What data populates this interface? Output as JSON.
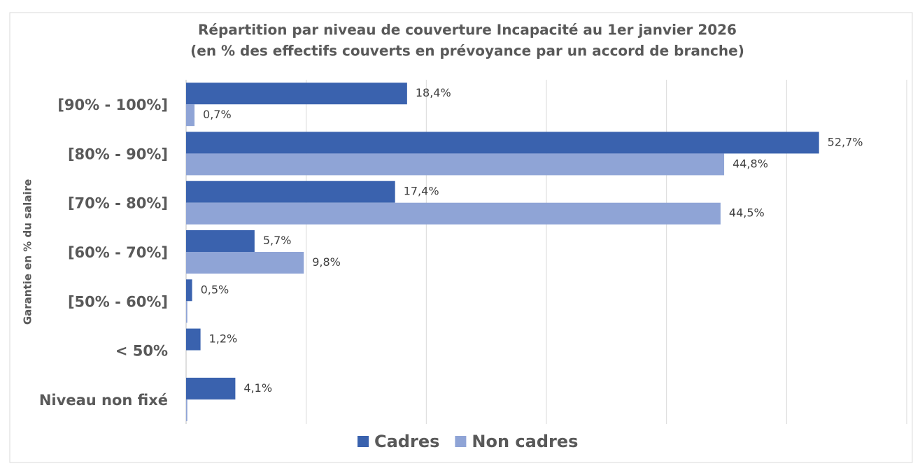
{
  "chart_data": {
    "type": "barh",
    "title": [
      "Répartition par niveau de couverture Incapacité au 1er janvier 2026",
      "(en % des effectifs couverts en prévoyance par un accord de branche)"
    ],
    "y_label": "Garantie en % du salaire",
    "categories": [
      "[90% - 100%]",
      "[80% - 90%]",
      "[70% - 80%]",
      "[60% - 70%]",
      "[50% - 60%]",
      "< 50%",
      "Niveau non fixé"
    ],
    "series": [
      {
        "name": "Cadres",
        "color": "#3a62ae",
        "values": [
          18.4,
          52.7,
          17.4,
          5.7,
          0.5,
          1.2,
          4.1
        ],
        "value_labels": [
          "18,4%",
          "52,7%",
          "17,4%",
          "5,7%",
          "0,5%",
          "1,2%",
          "4,1%"
        ]
      },
      {
        "name": "Non cadres",
        "color": "#8fa4d6",
        "values": [
          0.7,
          44.8,
          44.5,
          9.8,
          0.1,
          0,
          0.1
        ],
        "value_labels": [
          "0,7%",
          "44,8%",
          "44,5%",
          "9,8%",
          null,
          null,
          null
        ]
      }
    ],
    "xlim": [
      0,
      60
    ],
    "xticks": [
      0,
      10,
      20,
      30,
      40,
      50,
      60
    ],
    "grid": true,
    "x_tick_labels": false,
    "legend": "bottom"
  }
}
